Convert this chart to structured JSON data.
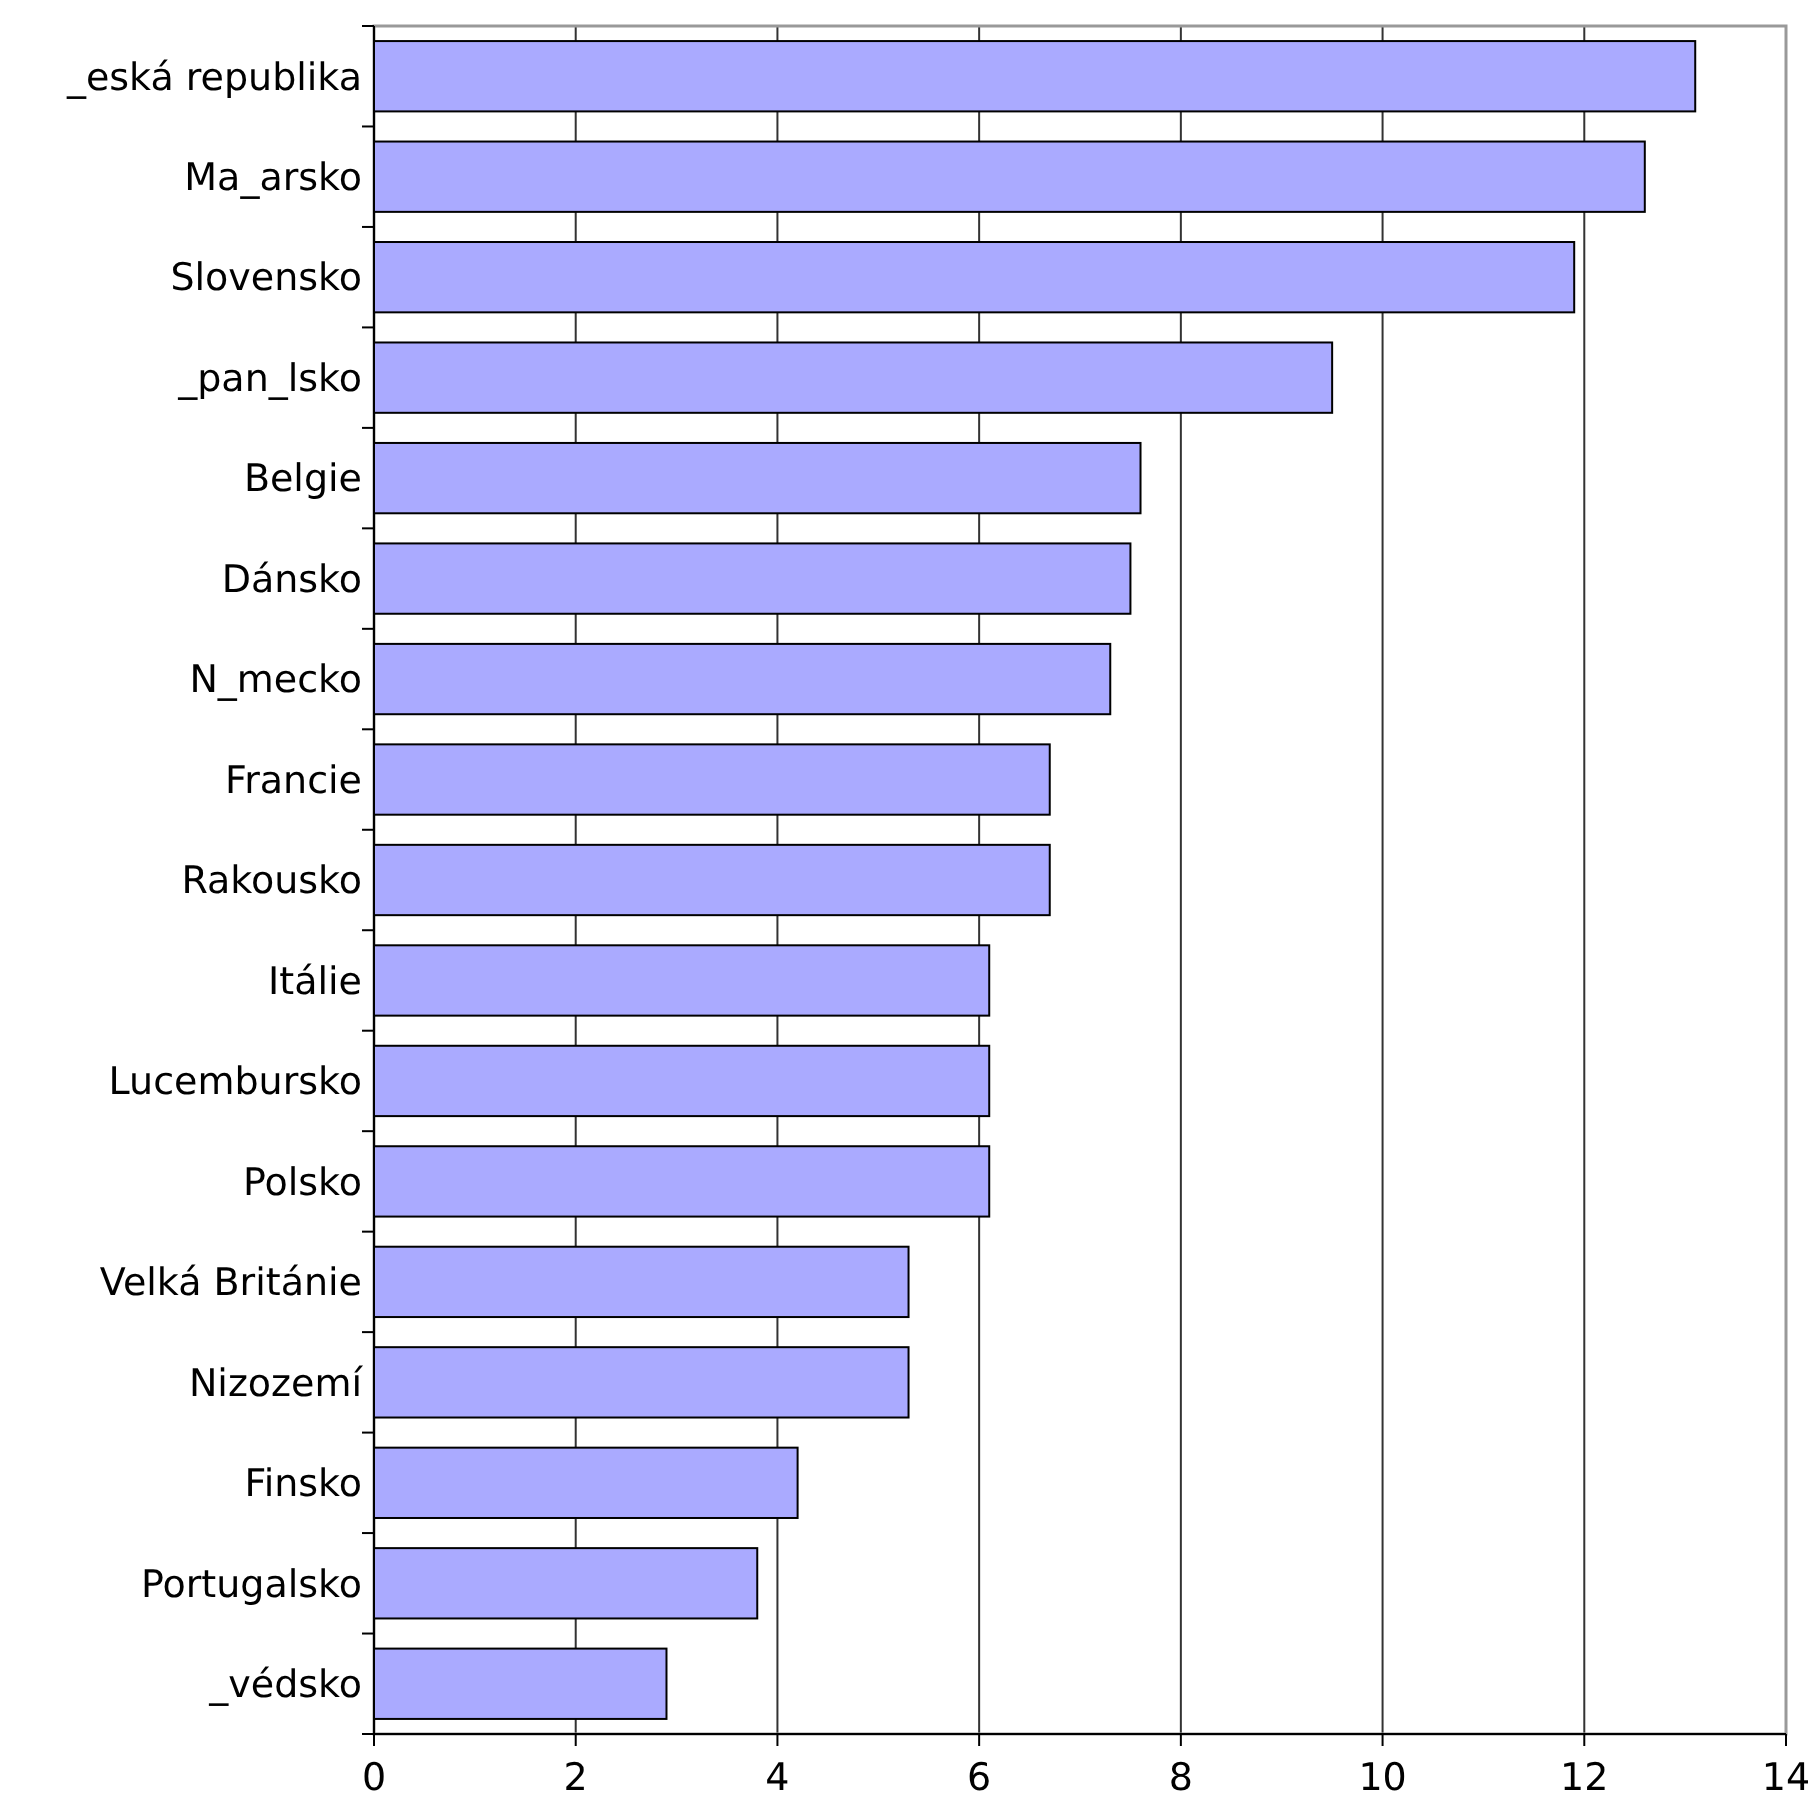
{
  "chart_data": {
    "type": "bar",
    "orientation": "horizontal",
    "categories": [
      "_eská republika",
      "Ma_arsko",
      "Slovensko",
      "_pan_lsko",
      "Belgie",
      "Dánsko",
      "N_mecko",
      "Francie",
      "Rakousko",
      "Itálie",
      "Lucembursko",
      "Polsko",
      "Velká Británie",
      "Nizozemí",
      "Finsko",
      "Portugalsko",
      "_védsko"
    ],
    "values": [
      13.1,
      12.6,
      11.9,
      9.5,
      7.6,
      7.5,
      7.3,
      6.7,
      6.7,
      6.1,
      6.1,
      6.1,
      5.3,
      5.3,
      4.2,
      3.8,
      2.9
    ],
    "color": "#aaaaff",
    "xlim": [
      0,
      14
    ],
    "xticks": [
      0,
      2,
      4,
      6,
      8,
      10,
      12,
      14
    ],
    "grid": "x"
  }
}
